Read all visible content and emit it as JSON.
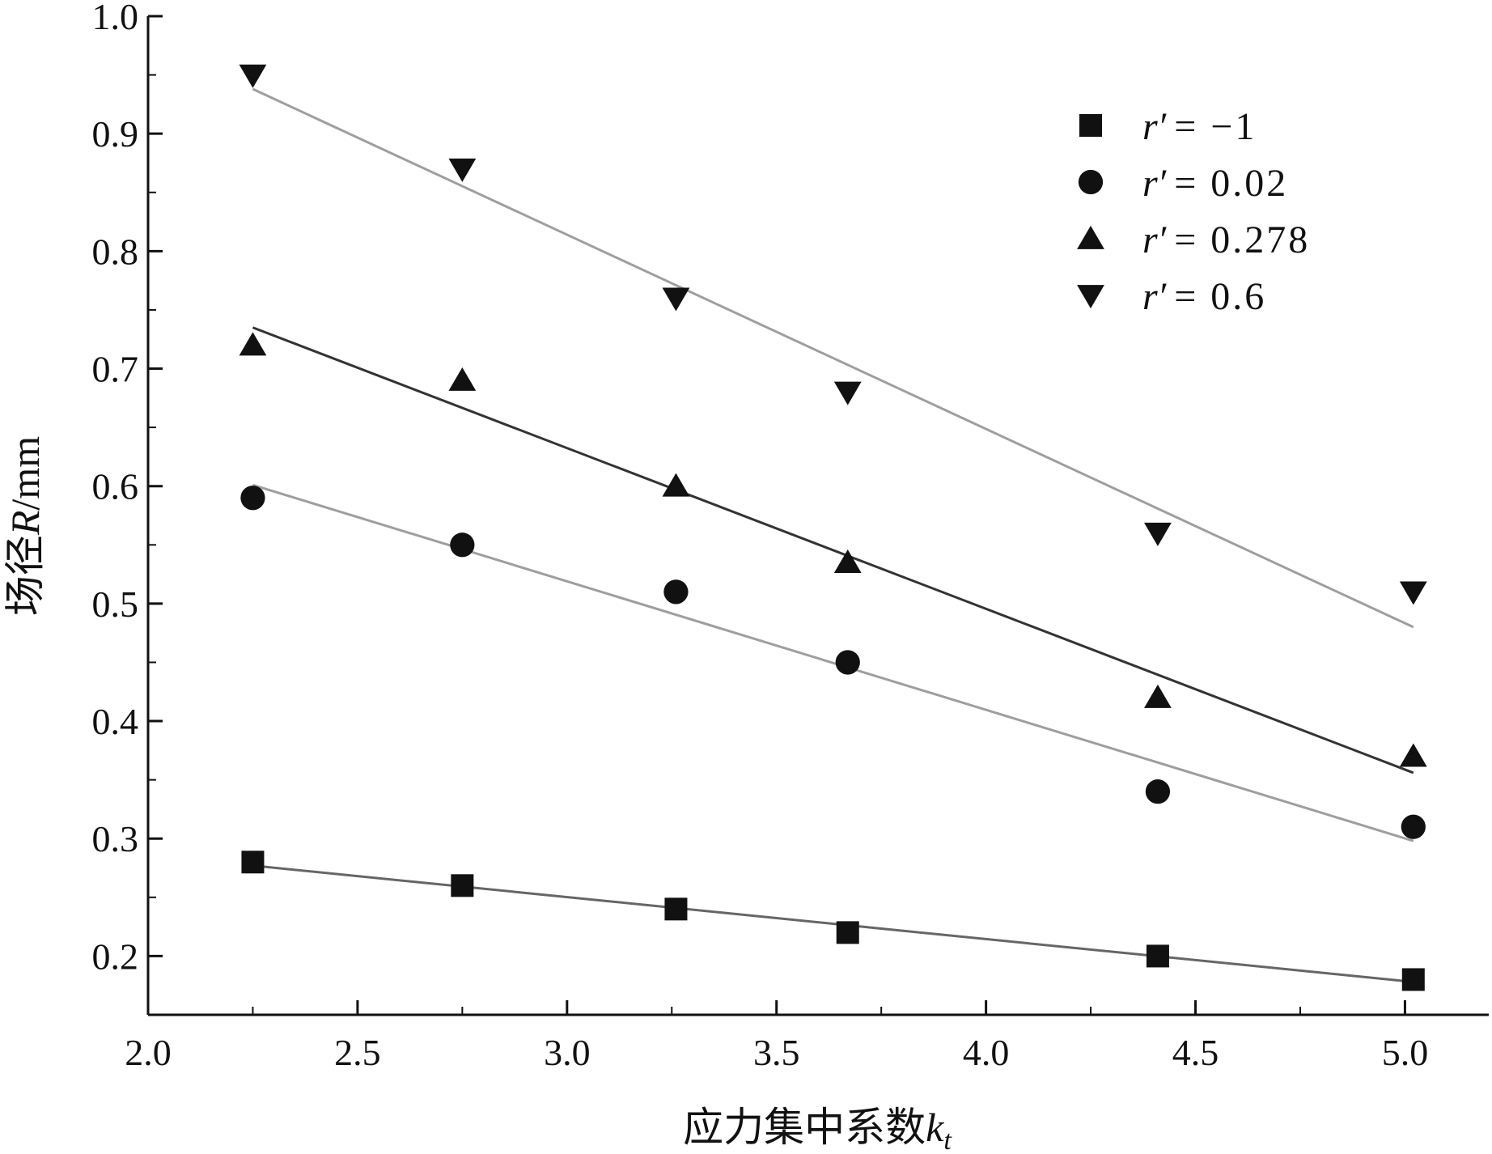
{
  "chart_data": {
    "type": "scatter",
    "xlabel": "应力集中系数",
    "xlabel_symbol": "k",
    "xlabel_subscript": "t",
    "ylabel": "场径",
    "ylabel_symbol": "R",
    "ylabel_unit": "/mm",
    "xlim": [
      2.0,
      5.2
    ],
    "ylim": [
      0.15,
      1.0
    ],
    "xticks": [
      "2.0",
      "2.5",
      "3.0",
      "3.5",
      "4.0",
      "4.5",
      "5.0"
    ],
    "yticks": [
      "0.2",
      "0.3",
      "0.4",
      "0.5",
      "0.6",
      "0.7",
      "0.8",
      "0.9",
      "1.0"
    ],
    "grid": false,
    "legend_position": "top-right",
    "x": [
      2.25,
      2.75,
      3.26,
      3.67,
      4.41,
      5.02
    ],
    "series": [
      {
        "name": "r′ = −1",
        "name_symbol": "r′",
        "name_value": "= −1",
        "marker": "square",
        "values": [
          0.28,
          0.26,
          0.24,
          0.22,
          0.2,
          0.18
        ],
        "fit": [
          [
            2.25,
            0.277
          ],
          [
            5.02,
            0.178
          ]
        ],
        "fit_color": "#666666"
      },
      {
        "name": "r′ = 0.02",
        "name_symbol": "r′",
        "name_value": "= 0.02",
        "marker": "circle",
        "values": [
          0.59,
          0.55,
          0.51,
          0.45,
          0.34,
          0.31
        ],
        "fit": [
          [
            2.25,
            0.601
          ],
          [
            5.02,
            0.298
          ]
        ],
        "fit_color": "#9e9e9e"
      },
      {
        "name": "r′ = 0.278",
        "name_symbol": "r′",
        "name_value": "= 0.278",
        "marker": "triangle-up",
        "values": [
          0.72,
          0.69,
          0.6,
          0.535,
          0.42,
          0.37
        ],
        "fit": [
          [
            2.25,
            0.735
          ],
          [
            5.02,
            0.356
          ]
        ],
        "fit_color": "#333333"
      },
      {
        "name": "r′ = 0.6",
        "name_symbol": "r′",
        "name_value": "= 0.6",
        "marker": "triangle-down",
        "values": [
          0.95,
          0.87,
          0.76,
          0.68,
          0.56,
          0.51
        ],
        "fit": [
          [
            2.25,
            0.938
          ],
          [
            5.02,
            0.48
          ]
        ],
        "fit_color": "#9e9e9e"
      }
    ]
  }
}
